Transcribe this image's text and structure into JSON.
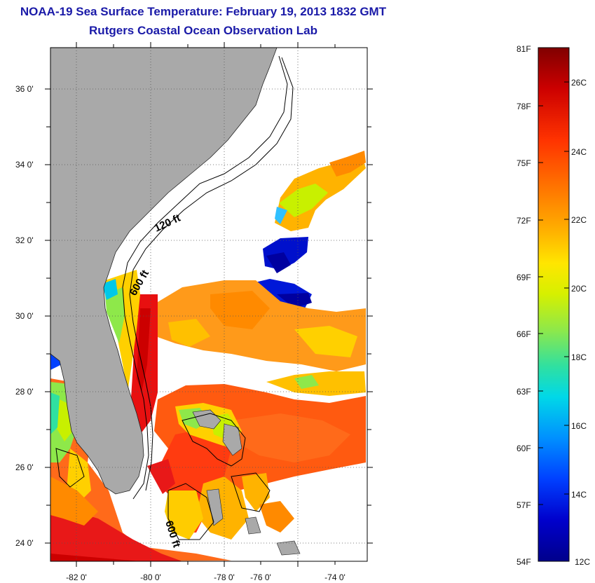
{
  "title": {
    "line1": "NOAA-19 Sea Surface Temperature:  February 19, 2013 1832 GMT",
    "line2": "Rutgers Coastal Ocean Observation Lab"
  },
  "map": {
    "lon_ticks": [
      "-82 0'",
      "-80 0'",
      "-78 0'",
      "-76 0'",
      "-74 0'"
    ],
    "lat_ticks": [
      "36 0'",
      "34 0'",
      "32 0'",
      "30 0'",
      "28 0'",
      "26 0'",
      "24 0'"
    ],
    "contour_labels": [
      "120 ft",
      "600 ft",
      "600 ft"
    ],
    "colors": {
      "land": "#a9a9a9",
      "water_missing": "#ffffff",
      "grid": "#555555"
    }
  },
  "colorbar": {
    "fahrenheit_labels": [
      "81F",
      "78F",
      "75F",
      "72F",
      "69F",
      "66F",
      "63F",
      "60F",
      "57F",
      "54F"
    ],
    "celsius_labels": [
      "26C",
      "24C",
      "22C",
      "20C",
      "18C",
      "16C",
      "14C",
      "12C"
    ],
    "stops": [
      "#800000",
      "#cc0000",
      "#ff3300",
      "#ff7a00",
      "#ffb300",
      "#ffe600",
      "#d6f000",
      "#8ee84a",
      "#30e0a0",
      "#00d8e8",
      "#0090ff",
      "#0040ff",
      "#0000cc",
      "#00008b"
    ]
  }
}
